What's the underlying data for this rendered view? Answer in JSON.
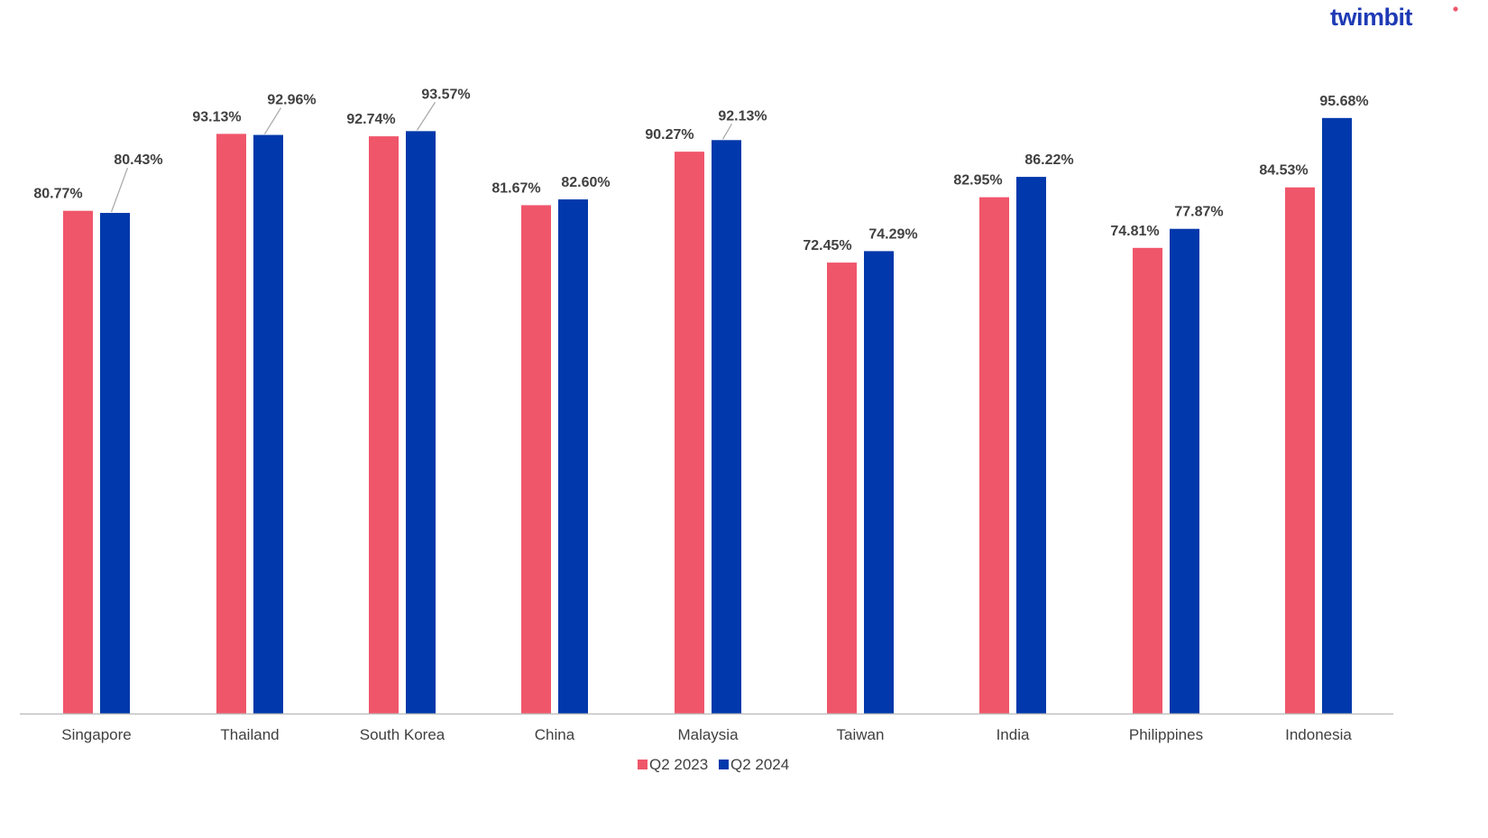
{
  "brand": {
    "logo_text": "twimbit",
    "logo_color": "#1e3ab5",
    "logo_dot_color": "#f0556a"
  },
  "chart_data": {
    "type": "bar",
    "categories": [
      "Singapore",
      "Thailand",
      "South Korea",
      "China",
      "Malaysia",
      "Taiwan",
      "India",
      "Philippines",
      "Indonesia"
    ],
    "series": [
      {
        "name": "Q2 2023",
        "color": "#f0566a",
        "values": [
          80.77,
          93.13,
          92.74,
          81.67,
          90.27,
          72.45,
          82.95,
          74.81,
          84.53
        ],
        "labels": [
          "80.77%",
          "93.13%",
          "92.74%",
          "81.67%",
          "90.27%",
          "72.45%",
          "82.95%",
          "74.81%",
          "84.53%"
        ]
      },
      {
        "name": "Q2 2024",
        "color": "#0138ab",
        "values": [
          80.43,
          92.96,
          93.57,
          82.6,
          92.13,
          74.29,
          86.22,
          77.87,
          95.68
        ],
        "labels": [
          "80.43%",
          "92.96%",
          "93.57%",
          "82.60%",
          "92.13%",
          "74.29%",
          "86.22%",
          "77.87%",
          "95.68%"
        ]
      }
    ],
    "ylim": [
      0,
      100
    ],
    "grid": false,
    "legend_position": "bottom",
    "title": "",
    "xlabel": "",
    "ylabel": ""
  }
}
